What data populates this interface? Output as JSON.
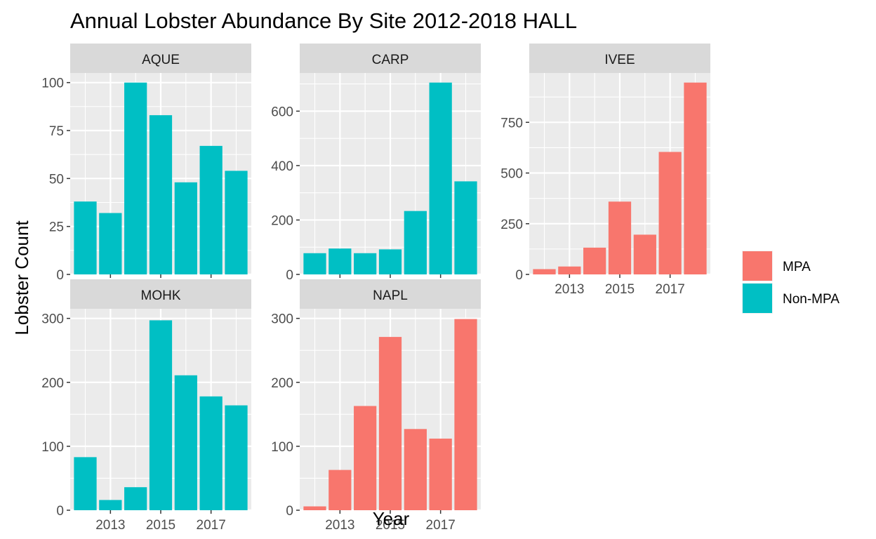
{
  "chart_data": {
    "type": "bar",
    "title": "Annual Lobster Abundance By Site 2012-2018 HALL",
    "xlabel": "Year",
    "ylabel": "Lobster Count",
    "x": [
      2012,
      2013,
      2014,
      2015,
      2016,
      2017,
      2018
    ],
    "x_ticks": [
      2013,
      2015,
      2017
    ],
    "x_tick_labels": [
      "2013",
      "2015",
      "2017"
    ],
    "grid": true,
    "legend": {
      "position": "right",
      "entries": [
        {
          "label": "MPA",
          "color": "#F8766D"
        },
        {
          "label": "Non-MPA",
          "color": "#00BFC4"
        }
      ]
    },
    "panels": [
      {
        "site": "AQUE",
        "group": "Non-MPA",
        "values": [
          38,
          32,
          100,
          83,
          48,
          67,
          54
        ],
        "ylim": [
          0,
          100
        ],
        "y_ticks": [
          0,
          25,
          50,
          75,
          100
        ],
        "y_tick_labels": [
          "0",
          "25",
          "50",
          "75",
          "100"
        ]
      },
      {
        "site": "CARP",
        "group": "Non-MPA",
        "values": [
          78,
          95,
          78,
          92,
          233,
          705,
          342
        ],
        "ylim": [
          0,
          705
        ],
        "y_ticks": [
          0,
          200,
          400,
          600
        ],
        "y_tick_labels": [
          "0",
          "200",
          "400",
          "600"
        ]
      },
      {
        "site": "IVEE",
        "group": "MPA",
        "values": [
          26,
          39,
          132,
          359,
          196,
          604,
          946
        ],
        "ylim": [
          0,
          946
        ],
        "y_ticks": [
          0,
          250,
          500,
          750
        ],
        "y_tick_labels": [
          "0",
          "250",
          "500",
          "750"
        ]
      },
      {
        "site": "MOHK",
        "group": "Non-MPA",
        "values": [
          83,
          16,
          36,
          297,
          211,
          178,
          164
        ],
        "ylim": [
          0,
          300
        ],
        "y_ticks": [
          0,
          100,
          200,
          300
        ],
        "y_tick_labels": [
          "0",
          "100",
          "200",
          "300"
        ]
      },
      {
        "site": "NAPL",
        "group": "MPA",
        "values": [
          6,
          63,
          163,
          271,
          127,
          112,
          299
        ],
        "ylim": [
          0,
          300
        ],
        "y_ticks": [
          0,
          100,
          200,
          300
        ],
        "y_tick_labels": [
          "0",
          "100",
          "200",
          "300"
        ]
      }
    ]
  },
  "colors": {
    "MPA": "#F8766D",
    "Non-MPA": "#00BFC4",
    "panel_background": "#EBEBEB",
    "strip_background": "#D9D9D9",
    "grid": "#FFFFFF",
    "tick": "#333333"
  }
}
